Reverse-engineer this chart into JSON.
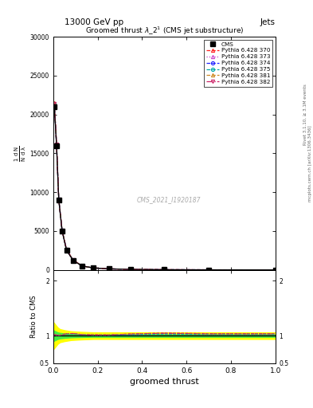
{
  "title_top": "13000 GeV pp",
  "title_right": "Jets",
  "plot_title": "Groomed thrust $\\lambda\\_2^1$ (CMS jet substructure)",
  "xlabel": "groomed thrust",
  "ylabel_ratio": "Ratio to CMS",
  "watermark": "CMS_2021_I1920187",
  "cms_x": [
    0.005,
    0.015,
    0.025,
    0.04,
    0.06,
    0.09,
    0.13,
    0.18,
    0.25,
    0.35,
    0.5,
    0.7,
    1.0
  ],
  "cms_y": [
    21000,
    16000,
    9000,
    5000,
    2500,
    1200,
    500,
    250,
    130,
    60,
    20,
    5,
    0.5
  ],
  "pythia_370_y": [
    21500,
    16200,
    9100,
    5100,
    2600,
    1250,
    510,
    255,
    132,
    62,
    21,
    5.2,
    0.52
  ],
  "pythia_373_y": [
    21300,
    16100,
    9050,
    5050,
    2580,
    1240,
    508,
    252,
    131,
    61,
    20.5,
    5.1,
    0.51
  ],
  "pythia_374_y": [
    21400,
    16150,
    9070,
    5060,
    2590,
    1245,
    509,
    253,
    131.5,
    61.5,
    20.7,
    5.15,
    0.515
  ],
  "pythia_375_y": [
    21350,
    16120,
    9060,
    5055,
    2585,
    1242,
    508,
    252,
    131,
    61,
    20.6,
    5.12,
    0.512
  ],
  "pythia_381_y": [
    21450,
    16180,
    9080,
    5070,
    2595,
    1248,
    511,
    254,
    132,
    62,
    21,
    5.18,
    0.518
  ],
  "pythia_382_y": [
    21420,
    16160,
    9075,
    5065,
    2592,
    1246,
    510,
    253,
    131.8,
    61.8,
    20.9,
    5.16,
    0.516
  ],
  "yticks_main": [
    0,
    5000,
    10000,
    15000,
    20000,
    25000,
    30000
  ],
  "ytick_labels_main": [
    "0",
    "5000",
    "10000",
    "15000",
    "20000",
    "25000",
    "30000"
  ],
  "ylim_main": [
    0,
    30000
  ],
  "ylim_ratio": [
    0.5,
    2.2
  ],
  "yticks_ratio": [
    0.5,
    1.0,
    2.0
  ],
  "ytick_labels_ratio": [
    "0.5",
    "1",
    "2"
  ],
  "xlim": [
    0.0,
    1.0
  ],
  "colors": [
    "#ff2222",
    "#cc44cc",
    "#2222ff",
    "#00aaaa",
    "#cc8822",
    "#cc2266"
  ],
  "linestyles": [
    "--",
    ":",
    "--",
    "--",
    "--",
    "-."
  ],
  "markers": [
    "^",
    "^",
    "o",
    "o",
    "^",
    "v"
  ],
  "labels": [
    "Pythia 6.428 370",
    "Pythia 6.428 373",
    "Pythia 6.428 374",
    "Pythia 6.428 375",
    "Pythia 6.428 381",
    "Pythia 6.428 382"
  ],
  "ratio_band_x": [
    0.0,
    0.01,
    0.02,
    0.03,
    0.05,
    0.08,
    0.12,
    0.18,
    0.25,
    0.4,
    0.6,
    0.8,
    1.0
  ],
  "ratio_band_yellow_upper": [
    1.25,
    1.2,
    1.15,
    1.12,
    1.1,
    1.08,
    1.07,
    1.06,
    1.06,
    1.06,
    1.06,
    1.06,
    1.06
  ],
  "ratio_band_yellow_lower": [
    0.75,
    0.8,
    0.85,
    0.88,
    0.9,
    0.92,
    0.93,
    0.94,
    0.94,
    0.94,
    0.94,
    0.94,
    0.94
  ],
  "ratio_band_green_upper": [
    1.1,
    1.08,
    1.06,
    1.05,
    1.04,
    1.03,
    1.025,
    1.02,
    1.02,
    1.02,
    1.02,
    1.02,
    1.02
  ],
  "ratio_band_green_lower": [
    0.9,
    0.92,
    0.94,
    0.95,
    0.96,
    0.97,
    0.975,
    0.98,
    0.98,
    0.98,
    0.98,
    0.98,
    0.98
  ]
}
